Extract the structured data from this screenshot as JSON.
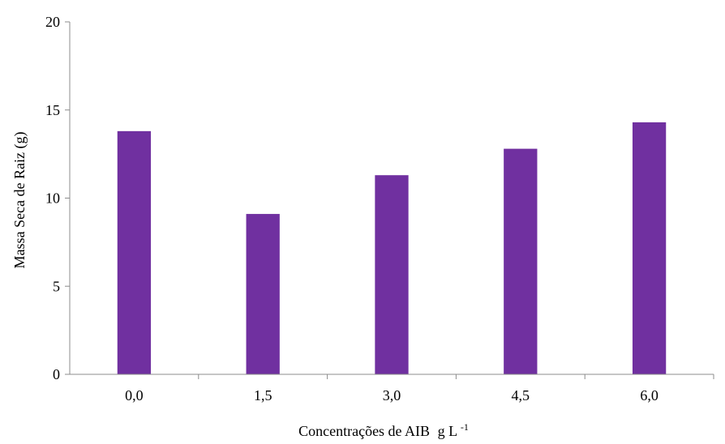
{
  "chart_data": {
    "type": "bar",
    "categories": [
      "0,0",
      "1,5",
      "3,0",
      "4,5",
      "6,0"
    ],
    "values": [
      13.8,
      9.1,
      11.3,
      12.8,
      14.3
    ],
    "ylabel": "Massa Seca de Raiz (g)",
    "xlabel": {
      "main": "Concentrações de AIB",
      "unit_base": "g L",
      "unit_sup": "-1"
    },
    "ylim": [
      0,
      20
    ],
    "yticks": [
      "0",
      "5",
      "10",
      "15",
      "20"
    ],
    "grid": false,
    "bar_color": "#7030a0",
    "axis_color": "#8c8c8c"
  }
}
